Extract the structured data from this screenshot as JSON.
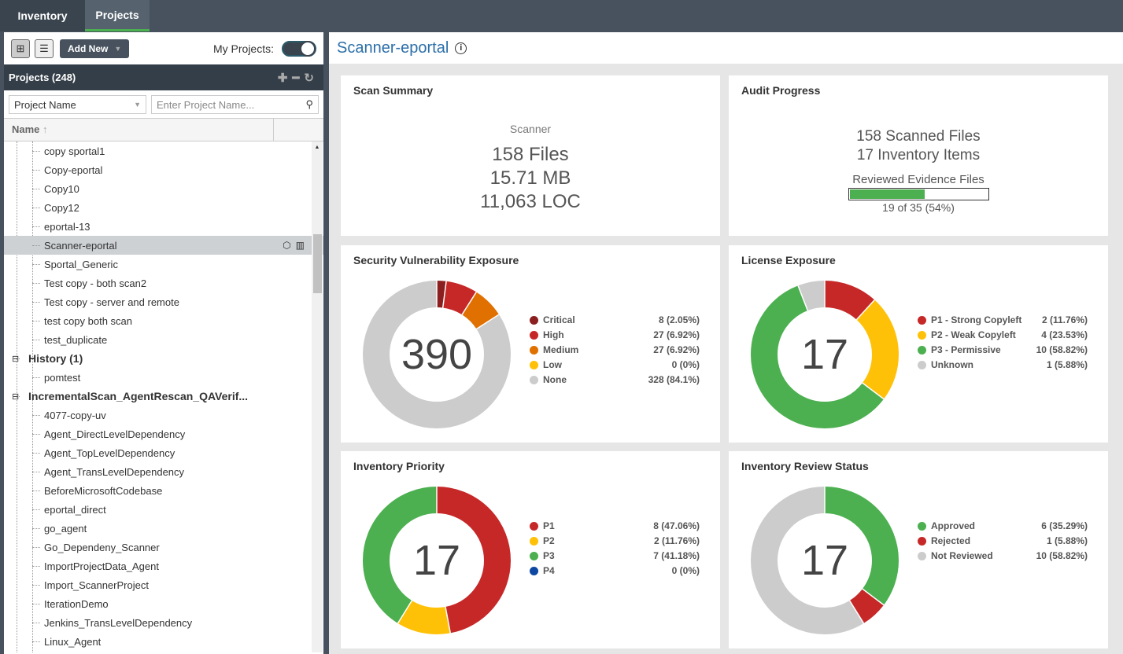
{
  "nav": {
    "tabs": [
      {
        "label": "Inventory",
        "active": false
      },
      {
        "label": "Projects",
        "active": true
      }
    ]
  },
  "sidebar": {
    "add_new": "Add New",
    "my_projects_label": "My Projects:",
    "my_projects_on": true,
    "projects_header": "Projects (248)",
    "filter_select": "Project Name",
    "search_placeholder": "Enter Project Name...",
    "column_name": "Name",
    "rows": [
      {
        "label": "copy sportal1",
        "type": "item"
      },
      {
        "label": "Copy-eportal",
        "type": "item"
      },
      {
        "label": "Copy10",
        "type": "item"
      },
      {
        "label": "Copy12",
        "type": "item"
      },
      {
        "label": "eportal-13",
        "type": "item"
      },
      {
        "label": "Scanner-eportal",
        "type": "item",
        "selected": true
      },
      {
        "label": "Sportal_Generic",
        "type": "item"
      },
      {
        "label": "Test copy - both scan2",
        "type": "item"
      },
      {
        "label": "Test copy - server and remote",
        "type": "item"
      },
      {
        "label": "test copy both scan",
        "type": "item"
      },
      {
        "label": "test_duplicate",
        "type": "item"
      },
      {
        "label": "History (1)",
        "type": "group"
      },
      {
        "label": "pomtest",
        "type": "item"
      },
      {
        "label": "IncrementalScan_AgentRescan_QAVerif...",
        "type": "group"
      },
      {
        "label": "4077-copy-uv",
        "type": "item"
      },
      {
        "label": "Agent_DirectLevelDependency",
        "type": "item"
      },
      {
        "label": "Agent_TopLevelDependency",
        "type": "item"
      },
      {
        "label": "Agent_TransLevelDependency",
        "type": "item"
      },
      {
        "label": "BeforeMicrosoftCodebase",
        "type": "item"
      },
      {
        "label": "eportal_direct",
        "type": "item"
      },
      {
        "label": "go_agent",
        "type": "item"
      },
      {
        "label": "Go_Dependeny_Scanner",
        "type": "item"
      },
      {
        "label": "ImportProjectData_Agent",
        "type": "item"
      },
      {
        "label": "Import_ScannerProject",
        "type": "item"
      },
      {
        "label": "IterationDemo",
        "type": "item"
      },
      {
        "label": "Jenkins_TransLevelDependency",
        "type": "item"
      },
      {
        "label": "Linux_Agent",
        "type": "item"
      }
    ]
  },
  "main": {
    "title": "Scanner-eportal",
    "scan_summary": {
      "title": "Scan Summary",
      "subtitle": "Scanner",
      "files": "158 Files",
      "size": "15.71 MB",
      "loc": "11,063 LOC"
    },
    "audit": {
      "title": "Audit Progress",
      "scanned": "158 Scanned Files",
      "inventory": "17 Inventory Items",
      "reviewed_label": "Reviewed Evidence Files",
      "progress": 0.54,
      "progress_text": "19 of 35 (54%)"
    }
  },
  "chart_data": [
    {
      "type": "pie",
      "title": "Security Vulnerability Exposure",
      "center": "390",
      "series": [
        {
          "name": "Critical",
          "value": 8,
          "label": "8 (2.05%)",
          "color": "#8b1f1f"
        },
        {
          "name": "High",
          "value": 27,
          "label": "27 (6.92%)",
          "color": "#c62828"
        },
        {
          "name": "Medium",
          "value": 27,
          "label": "27 (6.92%)",
          "color": "#e07000"
        },
        {
          "name": "Low",
          "value": 0,
          "label": "0 (0%)",
          "color": "#ffc107"
        },
        {
          "name": "None",
          "value": 328,
          "label": "328 (84.1%)",
          "color": "#cccccc"
        }
      ]
    },
    {
      "type": "pie",
      "title": "License Exposure",
      "center": "17",
      "series": [
        {
          "name": "P1 - Strong Copyleft",
          "value": 2,
          "label": "2 (11.76%)",
          "color": "#c62828"
        },
        {
          "name": "P2 - Weak Copyleft",
          "value": 4,
          "label": "4 (23.53%)",
          "color": "#ffc107"
        },
        {
          "name": "P3 - Permissive",
          "value": 10,
          "label": "10 (58.82%)",
          "color": "#4cb050"
        },
        {
          "name": "Unknown",
          "value": 1,
          "label": "1 (5.88%)",
          "color": "#cccccc"
        }
      ]
    },
    {
      "type": "pie",
      "title": "Inventory Priority",
      "center": "17",
      "series": [
        {
          "name": "P1",
          "value": 8,
          "label": "8 (47.06%)",
          "color": "#c62828"
        },
        {
          "name": "P2",
          "value": 2,
          "label": "2 (11.76%)",
          "color": "#ffc107"
        },
        {
          "name": "P3",
          "value": 7,
          "label": "7 (41.18%)",
          "color": "#4cb050"
        },
        {
          "name": "P4",
          "value": 0,
          "label": "0 (0%)",
          "color": "#0d47a1"
        }
      ]
    },
    {
      "type": "pie",
      "title": "Inventory Review Status",
      "center": "17",
      "series": [
        {
          "name": "Approved",
          "value": 6,
          "label": "6 (35.29%)",
          "color": "#4cb050"
        },
        {
          "name": "Rejected",
          "value": 1,
          "label": "1 (5.88%)",
          "color": "#c62828"
        },
        {
          "name": "Not Reviewed",
          "value": 10,
          "label": "10 (58.82%)",
          "color": "#cccccc"
        }
      ]
    }
  ]
}
